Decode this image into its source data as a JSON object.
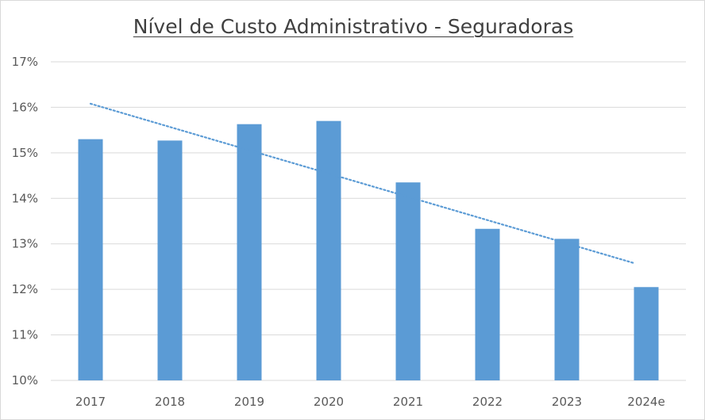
{
  "chart_data": {
    "type": "bar",
    "title": "Nível de Custo Administrativo - Seguradoras",
    "categories": [
      "2017",
      "2018",
      "2019",
      "2020",
      "2021",
      "2022",
      "2023",
      "2024e"
    ],
    "values": [
      15.3,
      15.27,
      15.63,
      15.7,
      14.35,
      13.33,
      13.11,
      12.05
    ],
    "unit": "%",
    "ylim": [
      10,
      17
    ],
    "yticks": [
      "10%",
      "11%",
      "12%",
      "13%",
      "14%",
      "15%",
      "16%",
      "17%"
    ],
    "grid": true,
    "legend": "none",
    "bar_color": "#5b9bd5",
    "trendline": {
      "type": "linear",
      "style": "dotted",
      "start": 16.08,
      "end": 12.58
    }
  }
}
